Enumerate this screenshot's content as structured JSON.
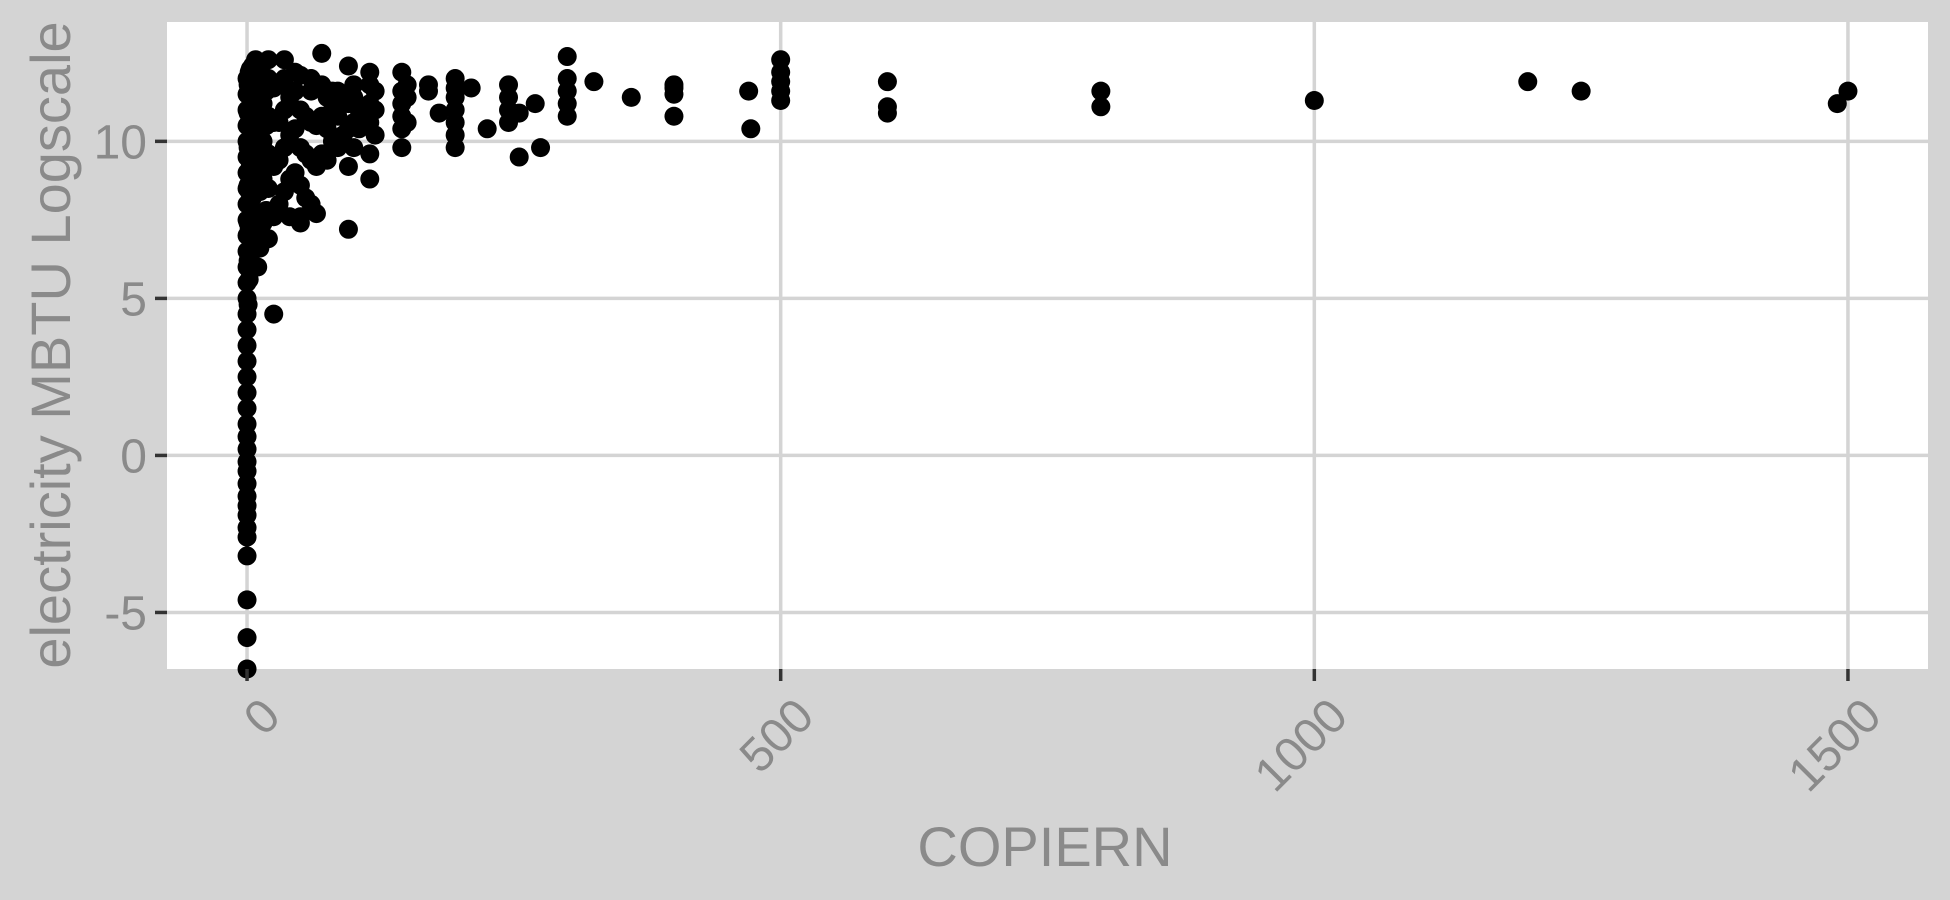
{
  "chart_data": {
    "type": "scatter",
    "title": "",
    "xlabel": "COPIERN",
    "ylabel": "electricity MBTU Logscale",
    "xlim": [
      -75,
      1575
    ],
    "ylim": [
      -6.8,
      13.8
    ],
    "x_ticks": [
      0,
      500,
      1000,
      1500
    ],
    "x_tick_labels": [
      "0",
      "500",
      "1000",
      "1500"
    ],
    "y_ticks": [
      -5,
      0,
      5,
      10
    ],
    "y_tick_labels": [
      "-5",
      "0",
      "5",
      "10"
    ],
    "grid": true,
    "legend": "none",
    "colors": {
      "background": "#d4d4d4",
      "panel": "#ffffff",
      "grid": "#d4d4d4",
      "point": "#000000",
      "text": "#8a8a8a"
    },
    "series": [
      {
        "points": [
          [
            0,
            -6.8
          ],
          [
            0,
            -5.8
          ],
          [
            0,
            -4.6
          ],
          [
            0,
            -3.2
          ],
          [
            0,
            -2.6
          ],
          [
            0,
            -2.3
          ],
          [
            0,
            -1.9
          ],
          [
            0,
            -1.6
          ],
          [
            0,
            -1.3
          ],
          [
            0,
            -0.9
          ],
          [
            0,
            -0.5
          ],
          [
            0,
            -0.2
          ],
          [
            0,
            0.2
          ],
          [
            0,
            0.6
          ],
          [
            0,
            1.0
          ],
          [
            0,
            1.5
          ],
          [
            0,
            2.0
          ],
          [
            0,
            2.5
          ],
          [
            0,
            3.0
          ],
          [
            0,
            3.5
          ],
          [
            0,
            4.0
          ],
          [
            0,
            4.5
          ],
          [
            0,
            5.0
          ],
          [
            0,
            5.5
          ],
          [
            0,
            6.0
          ],
          [
            0,
            6.5
          ],
          [
            0,
            7.0
          ],
          [
            0,
            7.5
          ],
          [
            0,
            8.0
          ],
          [
            0,
            8.5
          ],
          [
            0,
            9.0
          ],
          [
            0,
            9.5
          ],
          [
            0,
            10.0
          ],
          [
            0,
            10.5
          ],
          [
            0,
            11.0
          ],
          [
            0,
            11.5
          ],
          [
            0,
            12.0
          ],
          [
            1,
            4.8
          ],
          [
            1,
            6.2
          ],
          [
            1,
            7.4
          ],
          [
            1,
            8.6
          ],
          [
            1,
            9.8
          ],
          [
            1,
            10.9
          ],
          [
            1,
            11.8
          ],
          [
            2,
            5.6
          ],
          [
            2,
            7.2
          ],
          [
            2,
            8.4
          ],
          [
            2,
            9.6
          ],
          [
            2,
            10.6
          ],
          [
            2,
            11.6
          ],
          [
            2,
            12.2
          ],
          [
            3,
            6.4
          ],
          [
            3,
            8.0
          ],
          [
            3,
            9.2
          ],
          [
            3,
            10.4
          ],
          [
            3,
            11.4
          ],
          [
            3,
            12.3
          ],
          [
            5,
            6.8
          ],
          [
            5,
            8.2
          ],
          [
            5,
            9.4
          ],
          [
            5,
            10.6
          ],
          [
            5,
            11.8
          ],
          [
            5,
            12.4
          ],
          [
            8,
            7.0
          ],
          [
            8,
            8.6
          ],
          [
            8,
            9.9
          ],
          [
            8,
            11.0
          ],
          [
            8,
            12.0
          ],
          [
            8,
            12.6
          ],
          [
            10,
            6.0
          ],
          [
            10,
            7.6
          ],
          [
            10,
            9.0
          ],
          [
            10,
            10.2
          ],
          [
            10,
            11.3
          ],
          [
            10,
            12.2
          ],
          [
            12,
            6.6
          ],
          [
            12,
            8.4
          ],
          [
            12,
            9.8
          ],
          [
            12,
            11.1
          ],
          [
            12,
            12.0
          ],
          [
            15,
            7.4
          ],
          [
            15,
            8.8
          ],
          [
            15,
            10.0
          ],
          [
            15,
            11.2
          ],
          [
            15,
            12.5
          ],
          [
            18,
            7.8
          ],
          [
            18,
            9.2
          ],
          [
            18,
            10.5
          ],
          [
            18,
            11.6
          ],
          [
            20,
            6.9
          ],
          [
            20,
            8.5
          ],
          [
            20,
            9.6
          ],
          [
            20,
            10.8
          ],
          [
            20,
            12.0
          ],
          [
            20,
            12.6
          ],
          [
            25,
            4.5
          ],
          [
            25,
            7.6
          ],
          [
            25,
            9.2
          ],
          [
            25,
            10.6
          ],
          [
            25,
            11.7
          ],
          [
            30,
            8.0
          ],
          [
            30,
            9.4
          ],
          [
            30,
            10.6
          ],
          [
            30,
            11.8
          ],
          [
            35,
            8.4
          ],
          [
            35,
            9.8
          ],
          [
            35,
            11.0
          ],
          [
            35,
            12.0
          ],
          [
            35,
            12.6
          ],
          [
            40,
            7.6
          ],
          [
            40,
            8.8
          ],
          [
            40,
            10.2
          ],
          [
            40,
            11.4
          ],
          [
            45,
            9.0
          ],
          [
            45,
            10.4
          ],
          [
            45,
            11.6
          ],
          [
            45,
            12.2
          ],
          [
            50,
            7.6
          ],
          [
            50,
            7.4
          ],
          [
            50,
            8.6
          ],
          [
            50,
            9.8
          ],
          [
            50,
            11.0
          ],
          [
            50,
            12.1
          ],
          [
            55,
            8.2
          ],
          [
            55,
            9.6
          ],
          [
            55,
            10.8
          ],
          [
            60,
            8.0
          ],
          [
            60,
            9.4
          ],
          [
            60,
            10.6
          ],
          [
            60,
            11.6
          ],
          [
            60,
            12.0
          ],
          [
            65,
            7.7
          ],
          [
            65,
            9.2
          ],
          [
            65,
            10.5
          ],
          [
            65,
            11.7
          ],
          [
            70,
            9.6
          ],
          [
            70,
            10.8
          ],
          [
            70,
            11.8
          ],
          [
            70,
            12.8
          ],
          [
            75,
            9.4
          ],
          [
            75,
            10.4
          ],
          [
            75,
            11.4
          ],
          [
            80,
            10.0
          ],
          [
            80,
            11.0
          ],
          [
            80,
            11.6
          ],
          [
            85,
            9.8
          ],
          [
            85,
            10.8
          ],
          [
            85,
            11.6
          ],
          [
            90,
            10.2
          ],
          [
            90,
            11.2
          ],
          [
            95,
            7.2
          ],
          [
            95,
            9.2
          ],
          [
            95,
            10.4
          ],
          [
            95,
            11.2
          ],
          [
            95,
            12.4
          ],
          [
            100,
            9.8
          ],
          [
            100,
            10.6
          ],
          [
            100,
            11.4
          ],
          [
            100,
            11.8
          ],
          [
            105,
            10.4
          ],
          [
            105,
            11.0
          ],
          [
            115,
            8.8
          ],
          [
            115,
            9.6
          ],
          [
            115,
            10.6
          ],
          [
            115,
            11.2
          ],
          [
            115,
            11.8
          ],
          [
            115,
            12.2
          ],
          [
            120,
            10.2
          ],
          [
            120,
            11.0
          ],
          [
            120,
            11.6
          ],
          [
            145,
            9.8
          ],
          [
            145,
            10.4
          ],
          [
            145,
            10.8
          ],
          [
            145,
            11.2
          ],
          [
            145,
            11.6
          ],
          [
            145,
            12.2
          ],
          [
            150,
            10.6
          ],
          [
            150,
            11.4
          ],
          [
            150,
            11.8
          ],
          [
            170,
            11.6
          ],
          [
            170,
            11.8
          ],
          [
            180,
            10.9
          ],
          [
            195,
            9.8
          ],
          [
            195,
            10.2
          ],
          [
            195,
            10.6
          ],
          [
            195,
            11.0
          ],
          [
            195,
            11.4
          ],
          [
            195,
            11.7
          ],
          [
            195,
            12.0
          ],
          [
            210,
            11.7
          ],
          [
            225,
            10.4
          ],
          [
            245,
            10.6
          ],
          [
            245,
            11.0
          ],
          [
            245,
            11.4
          ],
          [
            245,
            11.8
          ],
          [
            255,
            9.5
          ],
          [
            255,
            10.9
          ],
          [
            270,
            11.2
          ],
          [
            275,
            9.8
          ],
          [
            300,
            10.8
          ],
          [
            300,
            11.2
          ],
          [
            300,
            11.6
          ],
          [
            300,
            12.0
          ],
          [
            300,
            12.7
          ],
          [
            325,
            11.9
          ],
          [
            360,
            11.4
          ],
          [
            400,
            10.8
          ],
          [
            400,
            11.5
          ],
          [
            400,
            11.7
          ],
          [
            400,
            11.8
          ],
          [
            470,
            11.6
          ],
          [
            472,
            10.4
          ],
          [
            500,
            11.3
          ],
          [
            500,
            11.6
          ],
          [
            500,
            11.9
          ],
          [
            500,
            12.2
          ],
          [
            500,
            12.6
          ],
          [
            600,
            10.9
          ],
          [
            600,
            11.1
          ],
          [
            600,
            11.9
          ],
          [
            800,
            11.1
          ],
          [
            800,
            11.6
          ],
          [
            1000,
            11.3
          ],
          [
            1200,
            11.9
          ],
          [
            1250,
            11.6
          ],
          [
            1490,
            11.2
          ],
          [
            1500,
            11.6
          ]
        ]
      }
    ]
  }
}
